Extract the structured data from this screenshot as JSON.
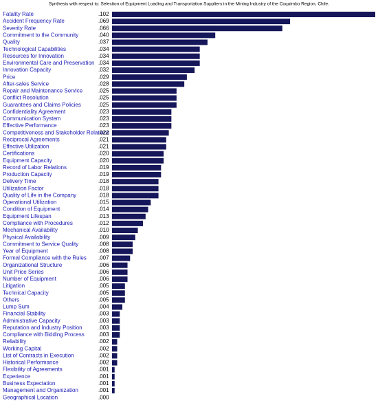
{
  "chart_data": {
    "type": "bar",
    "orientation": "horizontal",
    "title": "Synthesis with respect to: Selection of Equipment Loading and Transportation Suppliers in the Mining Industry of the Coquimbo Region, Chile.",
    "color": "#16165a",
    "categories": [
      "Fatality Rate",
      "Accident Frequency Rate",
      "Severity Rate",
      "Commitment to the Community",
      "Quality",
      "Technological Capabilities",
      "Resources for Innovation",
      "Environmental Care and Preservation",
      "Innovation Capacity",
      "Price",
      "After-sales Service",
      "Repair and Maintenance Service",
      "Conflict Resolution",
      "Guarantees and Claims Policies",
      "Confidentiality Agreement",
      "Communication System",
      "Effective Performance",
      "Competitiveness and Stakeholder Relations",
      "Reciprocal Agreements",
      "Effective Utilization",
      "Certifications",
      "Equipment Capacity",
      "Record of Labor Relations",
      "Production Capacity",
      "Delivery Time",
      "Utilization Factor",
      "Quality of Life in the Company",
      "Operational Utilization",
      "Condition of Equipment",
      "Equipment Lifespan",
      "Compliance with Procedures",
      "Mechanical Availability",
      "Physical Availability",
      "Commitment to Service Quality",
      "Year of Equipment",
      "Formal Compliance with the Rules",
      "Organizational Structure",
      "Unit Price Series",
      "Number of Equipment",
      "Litigation",
      "Technical Capacity",
      "Others",
      "Lump Sum",
      "Financial Stability",
      "Administrative Capacity",
      "Reputation and Industry Position",
      "Compliance with Bidding Process",
      "Reliability",
      "Working Capital",
      "List of Contracts in Execution",
      "Historical Performance",
      "Flexibility of Agreements",
      "Experience",
      "Business Expectation",
      "Management and Organization",
      "Geographical Location"
    ],
    "values": [
      0.102,
      0.069,
      0.066,
      0.04,
      0.037,
      0.034,
      0.034,
      0.034,
      0.032,
      0.029,
      0.028,
      0.025,
      0.025,
      0.025,
      0.023,
      0.023,
      0.023,
      0.022,
      0.021,
      0.021,
      0.02,
      0.02,
      0.019,
      0.019,
      0.018,
      0.018,
      0.018,
      0.015,
      0.014,
      0.013,
      0.012,
      0.01,
      0.009,
      0.008,
      0.008,
      0.007,
      0.006,
      0.006,
      0.006,
      0.005,
      0.005,
      0.005,
      0.004,
      0.003,
      0.003,
      0.003,
      0.003,
      0.002,
      0.002,
      0.002,
      0.002,
      0.001,
      0.001,
      0.001,
      0.001,
      0.0
    ],
    "value_labels": [
      ".102",
      ".069",
      ".066",
      ".040",
      ".037",
      ".034",
      ".034",
      ".034",
      ".032",
      ".029",
      ".028",
      ".025",
      ".025",
      ".025",
      ".023",
      ".023",
      ".023",
      ".022",
      ".021",
      ".021",
      ".020",
      ".020",
      ".019",
      ".019",
      ".018",
      ".018",
      ".018",
      ".015",
      ".014",
      ".013",
      ".012",
      ".010",
      ".009",
      ".008",
      ".008",
      ".007",
      ".006",
      ".006",
      ".006",
      ".005",
      ".005",
      ".005",
      ".004",
      ".003",
      ".003",
      ".003",
      ".003",
      ".002",
      ".002",
      ".002",
      ".002",
      ".001",
      ".001",
      ".001",
      ".001",
      ".000"
    ]
  }
}
